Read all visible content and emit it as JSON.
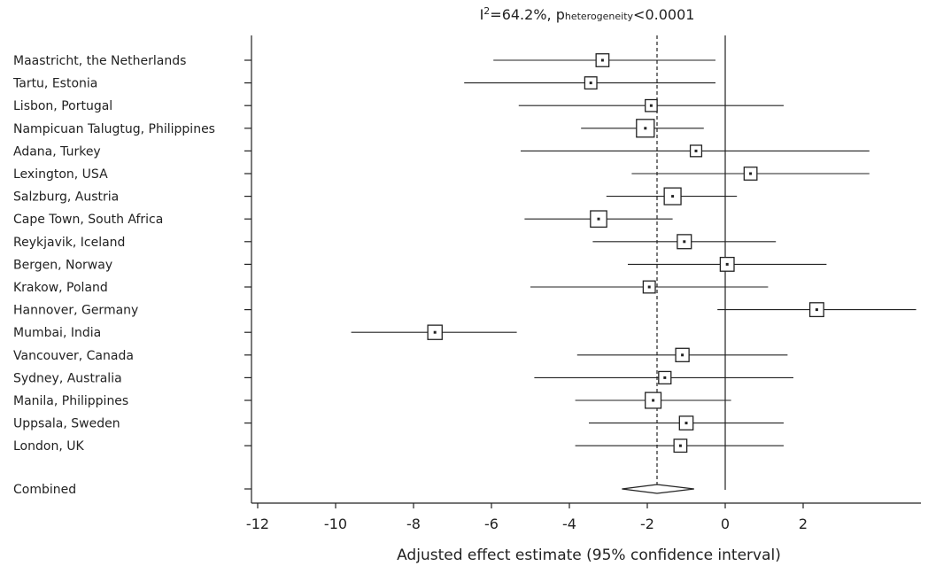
{
  "chart_data": {
    "type": "forest",
    "title": {
      "i2_prefix": "I",
      "i2_sup": "2",
      "i2_value": "=64.2%, ",
      "p_prefix": "p",
      "p_sub": "heterogeneity",
      "p_value": "<0.0001"
    },
    "xlabel": "Adjusted effect estimate (95% confidence interval)",
    "xlim": [
      -12.6,
      4.9
    ],
    "x_ticks": [
      -12,
      -10,
      -8,
      -6,
      -4,
      -2,
      0,
      2
    ],
    "pooled_estimate": -1.75,
    "studies": [
      {
        "label": "Maastricht, the Netherlands",
        "estimate": -3.15,
        "ci": [
          -5.95,
          -0.25
        ],
        "weight": 0.5
      },
      {
        "label": "Tartu, Estonia",
        "estimate": -3.45,
        "ci": [
          -6.7,
          -0.25
        ],
        "weight": 0.42
      },
      {
        "label": "Lisbon, Portugal",
        "estimate": -1.9,
        "ci": [
          -5.3,
          1.5
        ],
        "weight": 0.4
      },
      {
        "label": "Nampicuan Talugtug, Philippines",
        "estimate": -2.05,
        "ci": [
          -3.7,
          -0.55
        ],
        "weight": 1.0
      },
      {
        "label": "Adana, Turkey",
        "estimate": -0.75,
        "ci": [
          -5.25,
          3.7
        ],
        "weight": 0.35
      },
      {
        "label": "Lexington, USA",
        "estimate": 0.65,
        "ci": [
          -2.4,
          3.7
        ],
        "weight": 0.5
      },
      {
        "label": "Salzburg, Austria",
        "estimate": -1.35,
        "ci": [
          -3.05,
          0.3
        ],
        "weight": 0.9
      },
      {
        "label": "Cape Town, South Africa",
        "estimate": -3.25,
        "ci": [
          -5.15,
          -1.35
        ],
        "weight": 0.85
      },
      {
        "label": "Reykjavik, Iceland",
        "estimate": -1.05,
        "ci": [
          -3.4,
          1.3
        ],
        "weight": 0.62
      },
      {
        "label": "Bergen, Norway",
        "estimate": 0.05,
        "ci": [
          -2.5,
          2.6
        ],
        "weight": 0.6
      },
      {
        "label": "Krakow, Poland",
        "estimate": -1.95,
        "ci": [
          -5.0,
          1.1
        ],
        "weight": 0.42
      },
      {
        "label": "Hannover, Germany",
        "estimate": 2.35,
        "ci": [
          -0.2,
          4.9
        ],
        "weight": 0.6
      },
      {
        "label": "Mumbai, India",
        "estimate": -7.45,
        "ci": [
          -9.6,
          -5.35
        ],
        "weight": 0.65
      },
      {
        "label": "Vancouver, Canada",
        "estimate": -1.1,
        "ci": [
          -3.8,
          1.6
        ],
        "weight": 0.55
      },
      {
        "label": "Sydney, Australia",
        "estimate": -1.55,
        "ci": [
          -4.9,
          1.75
        ],
        "weight": 0.45
      },
      {
        "label": "Manila, Philippines",
        "estimate": -1.85,
        "ci": [
          -3.85,
          0.15
        ],
        "weight": 0.8
      },
      {
        "label": "Uppsala, Sweden",
        "estimate": -1.0,
        "ci": [
          -3.5,
          1.5
        ],
        "weight": 0.58
      },
      {
        "label": "London, UK",
        "estimate": -1.15,
        "ci": [
          -3.85,
          1.5
        ],
        "weight": 0.5
      }
    ],
    "combined": {
      "label": "Combined",
      "estimate": -1.75,
      "ci": [
        -2.65,
        -0.8
      ]
    }
  }
}
